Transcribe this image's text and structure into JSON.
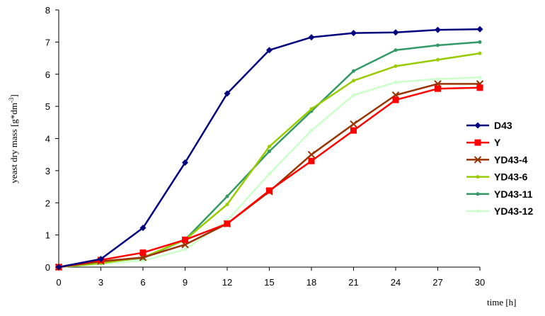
{
  "chart_data": {
    "type": "line",
    "title": "",
    "xlabel": "time [h]",
    "ylabel_parts": {
      "main": "yeast dry mass [g*dm",
      "sup": "-3",
      "end": "]"
    },
    "xlim": [
      0,
      30
    ],
    "ylim": [
      0,
      8
    ],
    "x_ticks": [
      0,
      3,
      6,
      9,
      12,
      15,
      18,
      21,
      24,
      27,
      30
    ],
    "y_ticks": [
      0,
      1,
      2,
      3,
      4,
      5,
      6,
      7,
      8
    ],
    "grid": false,
    "legend_position": "right",
    "x": [
      0,
      3,
      6,
      9,
      12,
      15,
      18,
      21,
      24,
      27,
      30
    ],
    "series": [
      {
        "name": "D43",
        "color": "#00007f",
        "marker": "diamond",
        "values": [
          0.0,
          0.25,
          1.22,
          3.25,
          5.4,
          6.75,
          7.15,
          7.28,
          7.3,
          7.38,
          7.4
        ]
      },
      {
        "name": "Y",
        "color": "#ff0000",
        "marker": "square",
        "values": [
          0.0,
          0.22,
          0.45,
          0.85,
          1.35,
          2.38,
          3.3,
          4.25,
          5.2,
          5.55,
          5.58
        ]
      },
      {
        "name": "YD43-4",
        "color": "#993300",
        "marker": "x",
        "values": [
          0.0,
          0.18,
          0.3,
          0.7,
          1.35,
          2.35,
          3.5,
          4.45,
          5.35,
          5.7,
          5.7
        ]
      },
      {
        "name": "YD43-6",
        "color": "#99cc00",
        "marker": "dot",
        "values": [
          0.0,
          0.12,
          0.3,
          0.85,
          1.95,
          3.75,
          4.92,
          5.8,
          6.25,
          6.45,
          6.65
        ]
      },
      {
        "name": "YD43-11",
        "color": "#339966",
        "marker": "dot",
        "values": [
          0.0,
          0.15,
          0.28,
          0.85,
          2.2,
          3.6,
          4.85,
          6.1,
          6.75,
          6.9,
          7.0
        ]
      },
      {
        "name": "YD43-12",
        "color": "#ccffcc",
        "marker": "dot",
        "values": [
          0.0,
          0.1,
          0.2,
          0.55,
          1.45,
          2.9,
          4.25,
          5.35,
          5.75,
          5.85,
          5.9
        ]
      }
    ]
  }
}
